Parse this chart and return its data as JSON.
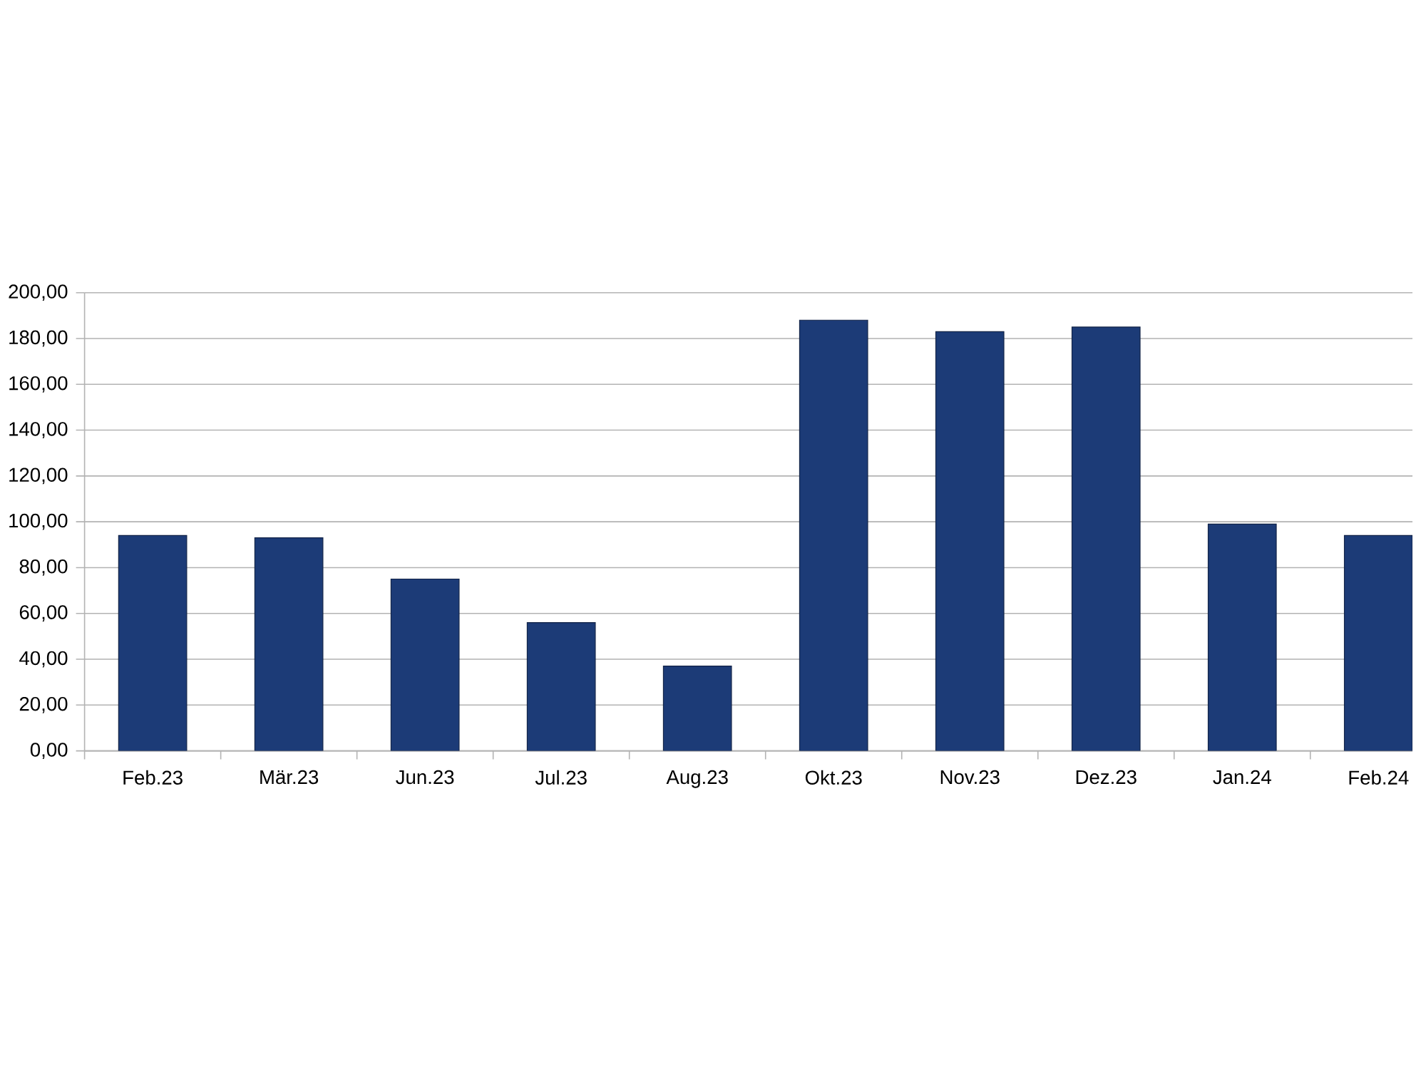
{
  "chart_data": {
    "type": "bar",
    "categories": [
      "Feb.23",
      "Mär.23",
      "Jun.23",
      "Jul.23",
      "Aug.23",
      "Okt.23",
      "Nov.23",
      "Dez.23",
      "Jan.24",
      "Feb.24"
    ],
    "values": [
      94,
      93,
      75,
      56,
      37,
      188,
      183,
      185,
      99,
      94
    ],
    "color": "#1c3b77",
    "ylim": [
      0,
      200
    ],
    "yticks": [
      {
        "value": 0,
        "label": "0,00"
      },
      {
        "value": 20,
        "label": "20,00"
      },
      {
        "value": 40,
        "label": "40,00"
      },
      {
        "value": 60,
        "label": "60,00"
      },
      {
        "value": 80,
        "label": "80,00"
      },
      {
        "value": 100,
        "label": "100,00"
      },
      {
        "value": 120,
        "label": "120,00"
      },
      {
        "value": 140,
        "label": "140,00"
      },
      {
        "value": 160,
        "label": "160,00"
      },
      {
        "value": 180,
        "label": "180,00"
      },
      {
        "value": 200,
        "label": "200,00"
      }
    ],
    "grid": "y"
  }
}
